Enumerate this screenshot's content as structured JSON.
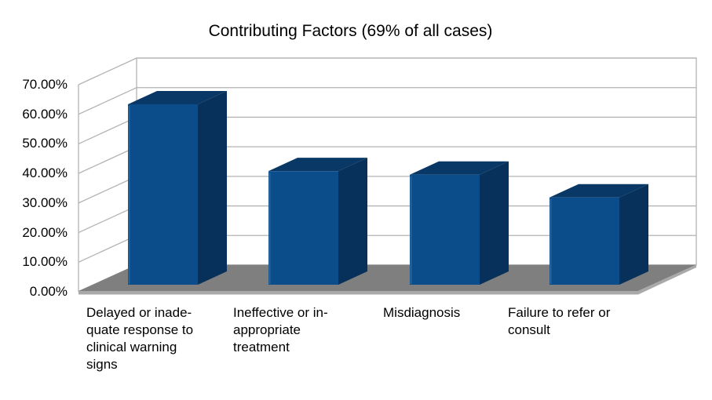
{
  "chart_data": {
    "type": "bar",
    "projection": "3d",
    "title": "Contributing Factors (69% of all cases)",
    "categories": [
      "Delayed or inadequate response to clinical warning signs",
      "Ineffective or inappropriate treatment",
      "Misdiagnosis",
      "Failure to refer or consult"
    ],
    "values": [
      61,
      38.4,
      37.2,
      29.5
    ],
    "unit": "%",
    "ylabel": "",
    "xlabel": "",
    "ylim": [
      0,
      70
    ],
    "ytick_step": 10,
    "ytick_labels": [
      "0.00%",
      "10.00%",
      "20.00%",
      "30.00%",
      "40.00%",
      "50.00%",
      "60.00%",
      "70.00%"
    ],
    "grid": true,
    "legend_position": "none",
    "category_label_lines": [
      [
        "Delayed or inade-",
        "quate response to",
        "clinical warning",
        "signs"
      ],
      [
        "Ineffective or in-",
        "appropriate",
        "treatment"
      ],
      [
        "Misdiagnosis"
      ],
      [
        "Failure to refer or",
        "consult"
      ]
    ],
    "colors": {
      "bar_front": "#0b4c8a",
      "bar_top": "#0a3866",
      "bar_side": "#07305a",
      "bar_edge_highlight": "#2f6aa3",
      "floor_top": "#7f7f7f",
      "floor_edge": "#a9a9a9",
      "grid_line": "#b3b3b3",
      "text": "#000000",
      "background": "#ffffff"
    }
  }
}
